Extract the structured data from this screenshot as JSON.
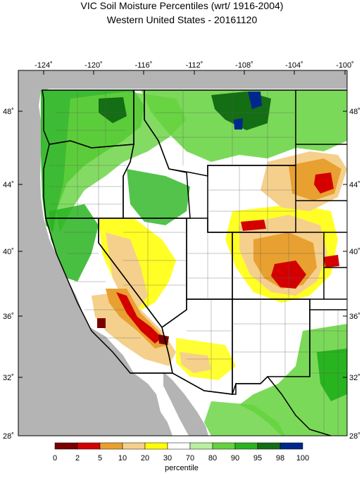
{
  "title": "VIC Soil Moisture Percentiles (wrt/ 1916-2004)",
  "subtitle": "Western United States - 20161120",
  "axes": {
    "lon_ticks": [
      "-124˚",
      "-120˚",
      "-116˚",
      "-112˚",
      "-108˚",
      "-104˚",
      "-100˚"
    ],
    "lat_ticks": [
      "48˚",
      "44˚",
      "40˚",
      "36˚",
      "32˚",
      "28˚"
    ]
  },
  "legend": {
    "label": "percentile",
    "breaks": [
      "0",
      "2",
      "5",
      "10",
      "20",
      "30",
      "70",
      "80",
      "90",
      "95",
      "98",
      "100"
    ],
    "colors": [
      "#7a0000",
      "#d40000",
      "#e8a030",
      "#f5d08c",
      "#ffff00",
      "#ffffff",
      "#b8f0a0",
      "#64d23c",
      "#28b41e",
      "#146e14",
      "#00288c"
    ]
  },
  "colors": {
    "ocean": "#b4b4b4",
    "land": "#ffffff",
    "state_border": "#000000",
    "county_border": "#5a5a5a"
  }
}
